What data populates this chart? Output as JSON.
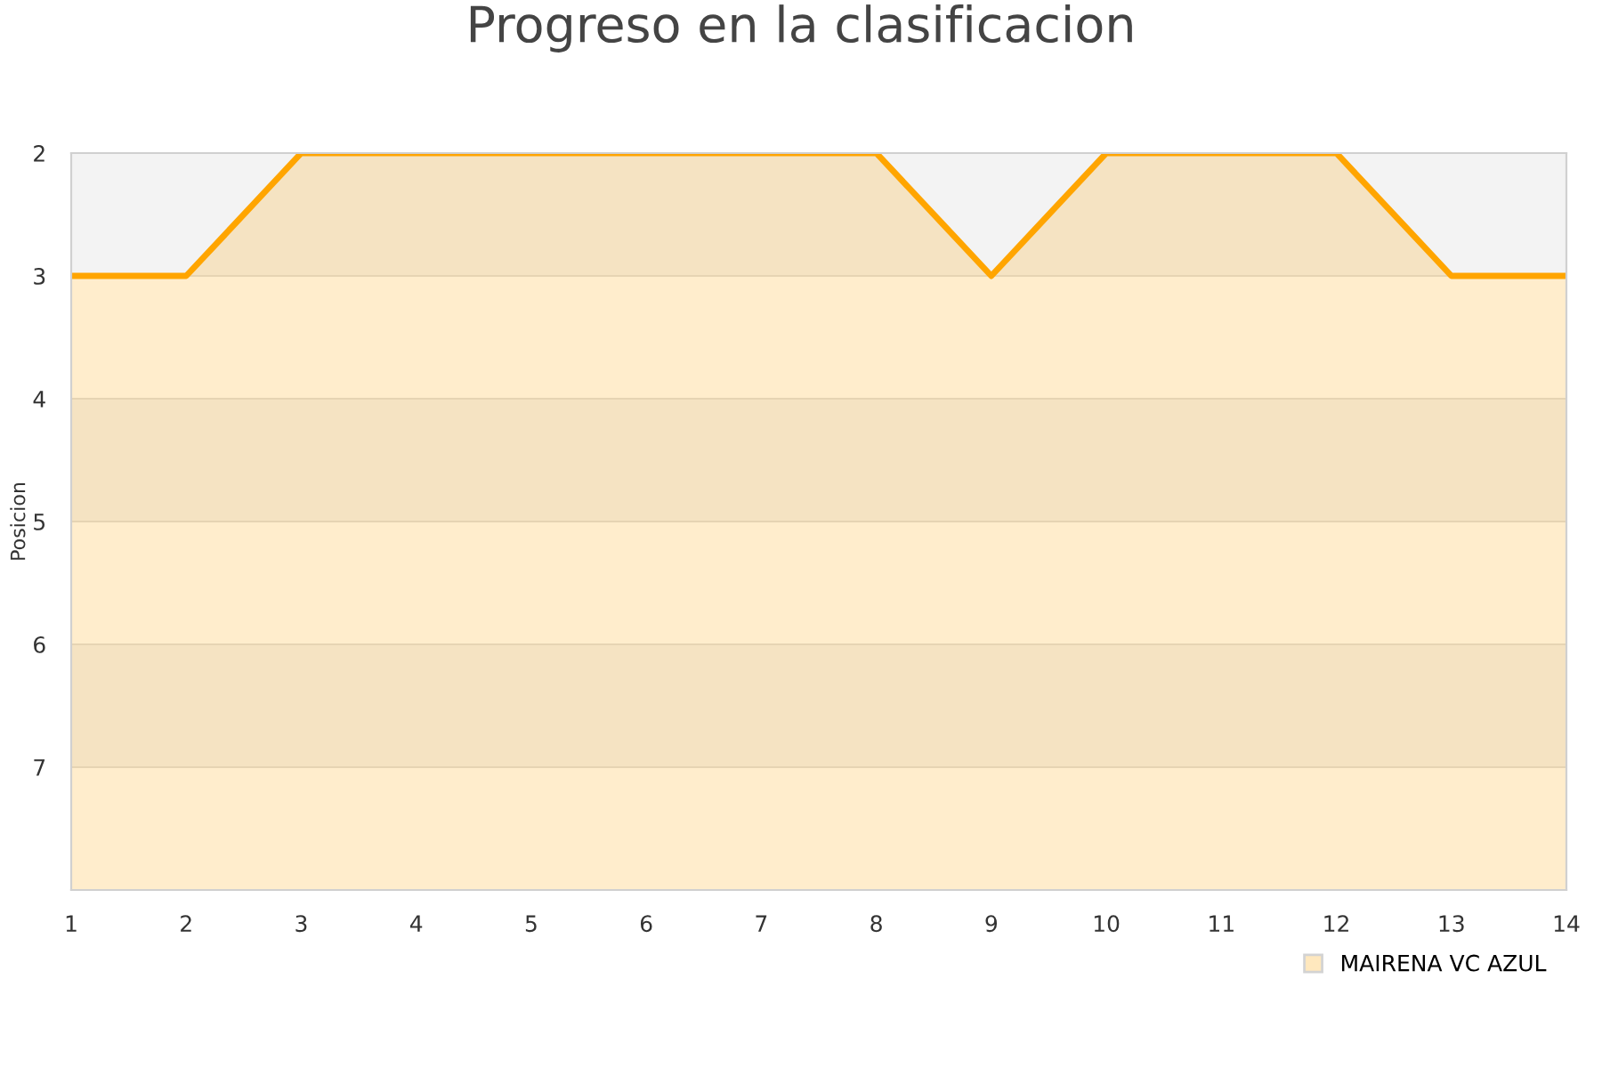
{
  "chart_data": {
    "type": "area",
    "title": "Progreso en la clasificacion",
    "ylabel": "Posicion",
    "x": [
      1,
      2,
      3,
      4,
      5,
      6,
      7,
      8,
      9,
      10,
      11,
      12,
      13,
      14
    ],
    "series": [
      {
        "name": "MAIRENA VC AZUL",
        "color": "#ffa500",
        "values": [
          3,
          3,
          2,
          2,
          2,
          2,
          2,
          2,
          3,
          2,
          2,
          2,
          3,
          3
        ]
      }
    ],
    "xlim": [
      1,
      14
    ],
    "ylim": [
      8,
      2
    ],
    "xticks": [
      1,
      2,
      3,
      4,
      5,
      6,
      7,
      8,
      9,
      10,
      11,
      12,
      13,
      14
    ],
    "yticks": [
      2,
      3,
      4,
      5,
      6,
      7
    ],
    "grid": "y",
    "legend": "bottom right"
  }
}
